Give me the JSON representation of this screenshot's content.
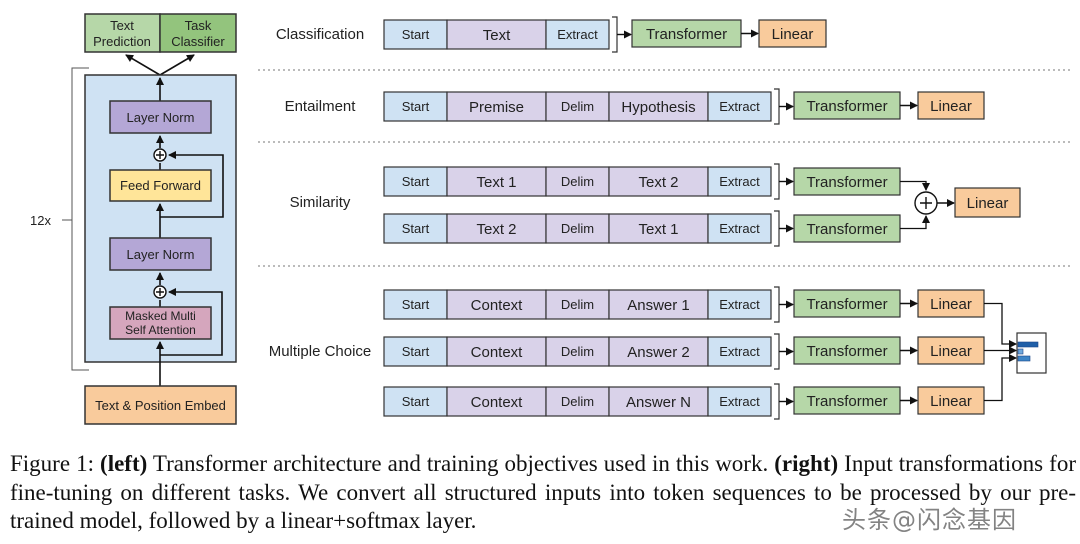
{
  "colors": {
    "start_extract": "#cfe2f3",
    "content_token": "#d9d2e9",
    "transformer": "#b6d7a8",
    "linear": "#f9cb9c",
    "block_bg": "#cfe2f3",
    "layer_norm": "#b4a7d6",
    "feed_forward": "#ffe599",
    "attention": "#d5a6bd",
    "embed": "#f9cb9c",
    "text_prediction": "#b6d7a8",
    "task_classifier": "#93c47d",
    "softmax_bar": "#1f5fa8"
  },
  "left": {
    "heads": [
      "Text Prediction",
      "Task Classifier"
    ],
    "repeat_label": "12x",
    "layer_norm_top": "Layer Norm",
    "feed_forward": "Feed Forward",
    "layer_norm_bottom": "Layer Norm",
    "attention_line1": "Masked Multi",
    "attention_line2": "Self Attention",
    "embed": "Text & Position Embed"
  },
  "right": {
    "transformer_label": "Transformer",
    "linear_label": "Linear",
    "tasks": [
      {
        "name": "Classification",
        "rows": [
          [
            "Start",
            "Text",
            "Extract"
          ]
        ]
      },
      {
        "name": "Entailment",
        "rows": [
          [
            "Start",
            "Premise",
            "Delim",
            "Hypothesis",
            "Extract"
          ]
        ]
      },
      {
        "name": "Similarity",
        "rows": [
          [
            "Start",
            "Text 1",
            "Delim",
            "Text 2",
            "Extract"
          ],
          [
            "Start",
            "Text 2",
            "Delim",
            "Text 1",
            "Extract"
          ]
        ]
      },
      {
        "name": "Multiple Choice",
        "rows": [
          [
            "Start",
            "Context",
            "Delim",
            "Answer 1",
            "Extract"
          ],
          [
            "Start",
            "Context",
            "Delim",
            "Answer 2",
            "Extract"
          ],
          [
            "Start",
            "Context",
            "Delim",
            "Answer N",
            "Extract"
          ]
        ]
      }
    ]
  },
  "caption": {
    "prefix": "Figure 1: ",
    "left_tag": "(left)",
    "left_text": " Transformer architecture and training objectives used in this work. ",
    "right_tag": "(right)",
    "right_text": " Input transformations for fine-tuning on different tasks.  We convert all structured inputs into token sequences to be processed by our pre-trained model, followed by a linear+softmax layer."
  },
  "watermark": "头条@闪念基因"
}
